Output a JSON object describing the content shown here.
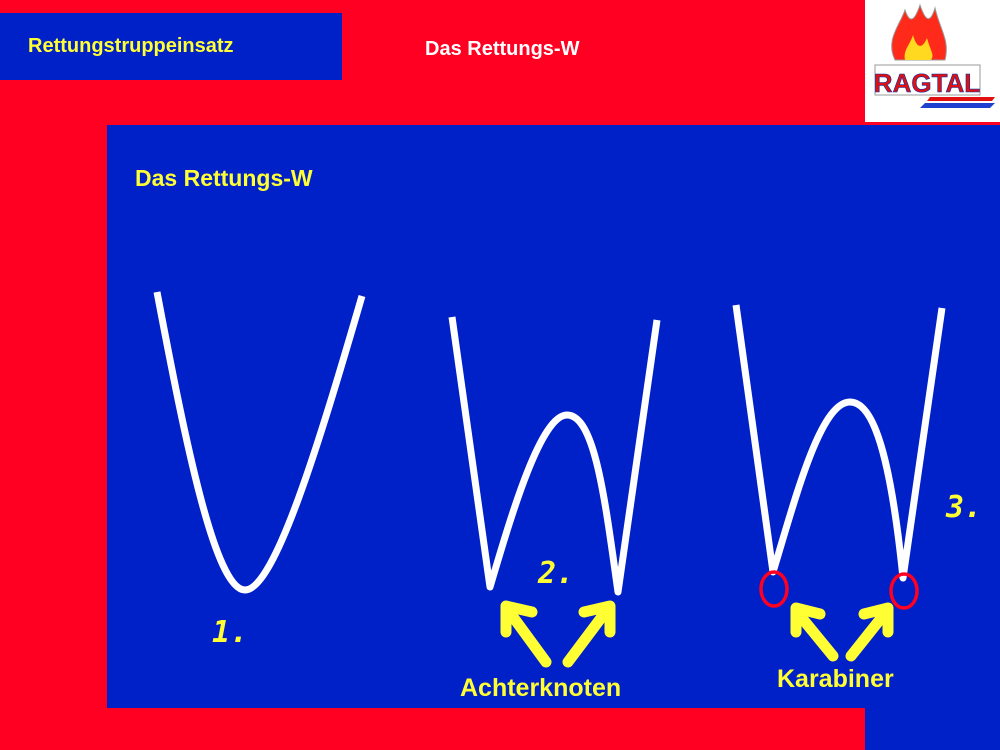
{
  "header": {
    "section": "Rettungstruppeinsatz",
    "title": "Das Rettungs-W"
  },
  "logo": {
    "text": "RAGTAL"
  },
  "slide": {
    "title": "Das Rettungs-W",
    "steps": [
      "1.",
      "2.",
      "3."
    ],
    "labels": {
      "knot": "Achterknoten",
      "carabiner": "Karabiner"
    }
  },
  "colors": {
    "red": "#ff0022",
    "blue": "#0020c8",
    "yellow": "#ffff33",
    "rope": "#ffffff"
  }
}
